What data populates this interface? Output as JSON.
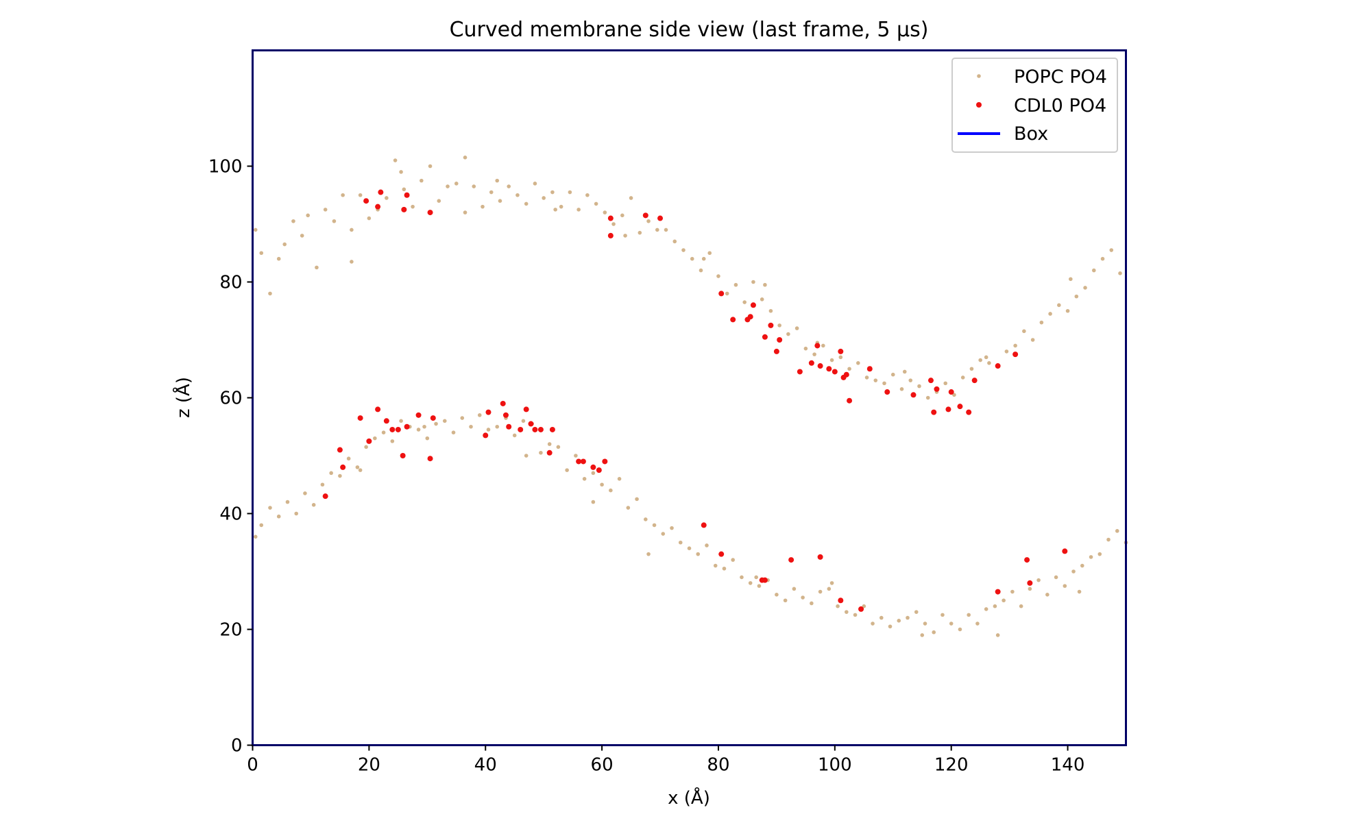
{
  "colors": {
    "popc": "#d2b48c",
    "cdl0": "#ee1111",
    "box_line": "#0000ff",
    "frame": "#000066"
  },
  "chart_data": {
    "type": "scatter",
    "title": "Curved membrane side view (last frame, 5 µs)",
    "xlabel": "x (Å)",
    "ylabel": "z (Å)",
    "xlim": [
      0,
      150
    ],
    "ylim": [
      0,
      120
    ],
    "xticks": [
      0,
      20,
      40,
      60,
      80,
      100,
      120,
      140
    ],
    "yticks": [
      0,
      20,
      40,
      60,
      80,
      100
    ],
    "legend": {
      "position": "top-right",
      "entries": [
        {
          "label": "POPC PO4",
          "kind": "marker-small",
          "color_key": "popc"
        },
        {
          "label": "CDL0 PO4",
          "kind": "marker",
          "color_key": "cdl0"
        },
        {
          "label": "Box",
          "kind": "line",
          "color_key": "box_line"
        }
      ]
    },
    "series": [
      {
        "name": "POPC PO4",
        "color": "#d2b48c",
        "upper_leaflet": {
          "x": [
            0.5,
            1.5,
            3.0,
            4.5,
            5.5,
            7.0,
            8.5,
            9.5,
            11.0,
            12.5,
            14.0,
            15.5,
            17.0,
            18.5,
            20.0,
            21.5,
            23.0,
            24.5,
            26.0,
            27.5,
            29.0,
            30.5,
            32.0,
            33.5,
            35.0,
            36.5,
            38.0,
            39.5,
            41.0,
            42.5,
            44.0,
            45.5,
            47.0,
            48.5,
            50.0,
            51.5,
            53.0,
            54.5,
            56.0,
            57.5,
            59.0,
            60.5,
            62.0,
            63.5,
            65.0,
            66.5,
            68.0,
            69.5,
            71.0,
            72.5,
            74.0,
            75.5,
            77.0,
            78.5,
            80.0,
            81.5,
            83.0,
            84.5,
            86.0,
            87.5,
            89.0,
            90.5,
            92.0,
            93.5,
            95.0,
            96.5,
            98.0,
            99.5,
            101.0,
            102.5,
            104.0,
            105.5,
            107.0,
            108.5,
            110.0,
            111.5,
            113.0,
            114.5,
            116.0,
            117.5,
            119.0,
            120.5,
            122.0,
            123.5,
            125.0,
            126.5,
            128.0,
            129.5,
            131.0,
            132.5,
            134.0,
            135.5,
            137.0,
            138.5,
            140.0,
            141.5,
            143.0,
            144.5,
            146.0,
            147.5,
            149.0,
            25.5,
            36.5,
            17.0,
            42.0,
            52.0,
            64.0,
            77.5,
            88.0,
            97.0,
            112.0,
            126.0,
            140.5
          ],
          "y": [
            89.0,
            85.0,
            78.0,
            84.0,
            86.5,
            90.5,
            88.0,
            91.5,
            82.5,
            92.5,
            90.5,
            95.0,
            83.5,
            95.0,
            91.0,
            92.5,
            94.5,
            101.0,
            96.0,
            93.0,
            97.5,
            100.0,
            94.0,
            96.5,
            97.0,
            101.5,
            96.5,
            93.0,
            95.5,
            94.0,
            96.5,
            95.0,
            93.5,
            97.0,
            94.5,
            95.5,
            93.0,
            95.5,
            92.5,
            95.0,
            93.5,
            92.0,
            90.0,
            91.5,
            94.5,
            88.5,
            90.5,
            89.0,
            89.0,
            87.0,
            85.5,
            84.0,
            82.0,
            85.0,
            81.0,
            78.0,
            79.5,
            76.5,
            80.0,
            77.0,
            75.0,
            72.5,
            71.0,
            72.0,
            68.5,
            67.5,
            69.0,
            66.5,
            67.0,
            65.0,
            66.0,
            63.5,
            63.0,
            62.5,
            64.0,
            61.5,
            63.0,
            62.0,
            60.0,
            61.0,
            62.5,
            60.5,
            63.5,
            65.0,
            66.5,
            66.0,
            65.5,
            68.0,
            69.0,
            71.5,
            70.0,
            73.0,
            74.5,
            76.0,
            75.0,
            77.5,
            79.0,
            82.0,
            84.0,
            85.5,
            81.5,
            99.0,
            92.0,
            89.0,
            97.5,
            92.5,
            88.0,
            84.0,
            79.5,
            69.5,
            64.5,
            67.0,
            80.5
          ]
        },
        "lower_leaflet": {
          "x": [
            0.5,
            1.5,
            3.0,
            4.5,
            6.0,
            7.5,
            9.0,
            10.5,
            12.0,
            13.5,
            15.0,
            16.5,
            18.0,
            19.5,
            21.0,
            22.5,
            24.0,
            25.5,
            27.0,
            28.5,
            30.0,
            31.5,
            33.0,
            34.5,
            36.0,
            37.5,
            39.0,
            40.5,
            42.0,
            43.5,
            45.0,
            46.5,
            48.0,
            49.5,
            51.0,
            52.5,
            54.0,
            55.5,
            57.0,
            58.5,
            60.0,
            61.5,
            63.0,
            64.5,
            66.0,
            67.5,
            69.0,
            70.5,
            72.0,
            73.5,
            75.0,
            76.5,
            78.0,
            79.5,
            81.0,
            82.5,
            84.0,
            85.5,
            87.0,
            88.5,
            90.0,
            91.5,
            93.0,
            94.5,
            96.0,
            97.5,
            99.0,
            100.5,
            102.0,
            103.5,
            105.0,
            106.5,
            108.0,
            109.5,
            111.0,
            112.5,
            114.0,
            115.5,
            117.0,
            118.5,
            120.0,
            121.5,
            123.0,
            124.5,
            126.0,
            127.5,
            129.0,
            130.5,
            132.0,
            133.5,
            135.0,
            136.5,
            138.0,
            139.5,
            141.0,
            142.5,
            144.0,
            145.5,
            147.0,
            148.5,
            150.0,
            18.5,
            29.5,
            47.0,
            58.5,
            68.0,
            86.5,
            99.5,
            115.0,
            128.0,
            142.0
          ],
          "y": [
            36.0,
            38.0,
            41.0,
            39.5,
            42.0,
            40.0,
            43.5,
            41.5,
            45.0,
            47.0,
            46.5,
            49.5,
            48.0,
            51.5,
            53.0,
            54.0,
            52.5,
            56.0,
            55.0,
            54.5,
            53.0,
            55.5,
            56.0,
            54.0,
            56.5,
            55.0,
            57.0,
            54.5,
            55.0,
            56.5,
            53.5,
            56.0,
            55.5,
            50.5,
            52.0,
            51.5,
            47.5,
            50.0,
            46.0,
            47.0,
            45.0,
            44.0,
            46.0,
            41.0,
            42.5,
            39.0,
            38.0,
            36.5,
            37.5,
            35.0,
            34.0,
            33.0,
            34.5,
            31.0,
            30.5,
            32.0,
            29.0,
            28.0,
            27.5,
            28.5,
            26.0,
            25.0,
            27.0,
            25.5,
            24.5,
            26.5,
            27.0,
            24.0,
            23.0,
            22.5,
            24.0,
            21.0,
            22.0,
            20.5,
            21.5,
            22.0,
            23.0,
            21.0,
            19.5,
            22.5,
            21.0,
            20.0,
            22.5,
            21.0,
            23.5,
            24.0,
            25.0,
            26.5,
            24.0,
            27.0,
            28.5,
            26.0,
            29.0,
            27.5,
            30.0,
            31.0,
            32.5,
            33.0,
            35.5,
            37.0,
            35.0,
            47.5,
            55.0,
            50.0,
            42.0,
            33.0,
            29.0,
            28.0,
            19.0,
            19.0,
            26.5
          ]
        }
      },
      {
        "name": "CDL0 PO4",
        "color": "#ee1111",
        "x": [
          19.5,
          21.5,
          22.0,
          26.0,
          26.5,
          30.5,
          61.5,
          61.5,
          67.5,
          70.0,
          80.5,
          82.5,
          85.0,
          85.5,
          86.0,
          88.0,
          89.0,
          90.0,
          90.5,
          94.0,
          96.0,
          97.0,
          97.5,
          99.0,
          100.0,
          101.0,
          101.5,
          102.0,
          102.5,
          106.0,
          109.0,
          113.5,
          116.5,
          117.0,
          117.5,
          119.5,
          120.0,
          121.5,
          123.0,
          124.0,
          128.0,
          131.0,
          12.5,
          15.0,
          15.5,
          18.5,
          20.0,
          21.5,
          23.0,
          24.0,
          25.0,
          25.8,
          26.5,
          28.5,
          30.5,
          31.0,
          40.0,
          40.5,
          43.0,
          43.5,
          44.0,
          46.0,
          47.0,
          47.8,
          48.5,
          49.5,
          51.0,
          51.5,
          56.0,
          56.8,
          58.5,
          59.5,
          60.5,
          77.5,
          80.5,
          87.5,
          88.0,
          92.5,
          97.5,
          101.0,
          104.5,
          128.0,
          133.0,
          133.5,
          139.5
        ],
        "y": [
          94.0,
          93.0,
          95.5,
          92.5,
          95.0,
          92.0,
          91.0,
          88.0,
          91.5,
          91.0,
          78.0,
          73.5,
          73.5,
          74.0,
          76.0,
          70.5,
          72.5,
          68.0,
          70.0,
          64.5,
          66.0,
          69.0,
          65.5,
          65.0,
          64.5,
          68.0,
          63.5,
          64.0,
          59.5,
          65.0,
          61.0,
          60.5,
          63.0,
          57.5,
          61.5,
          58.0,
          61.0,
          58.5,
          57.5,
          63.0,
          65.5,
          67.5,
          43.0,
          51.0,
          48.0,
          56.5,
          52.5,
          58.0,
          56.0,
          54.5,
          54.5,
          50.0,
          55.0,
          57.0,
          49.5,
          56.5,
          53.5,
          57.5,
          59.0,
          57.0,
          55.0,
          54.5,
          58.0,
          55.5,
          54.5,
          54.5,
          50.5,
          54.5,
          49.0,
          49.0,
          48.0,
          47.5,
          49.0,
          38.0,
          33.0,
          28.5,
          28.5,
          32.0,
          32.5,
          25.0,
          23.5,
          26.5,
          32.0,
          28.0,
          33.5
        ]
      }
    ]
  }
}
